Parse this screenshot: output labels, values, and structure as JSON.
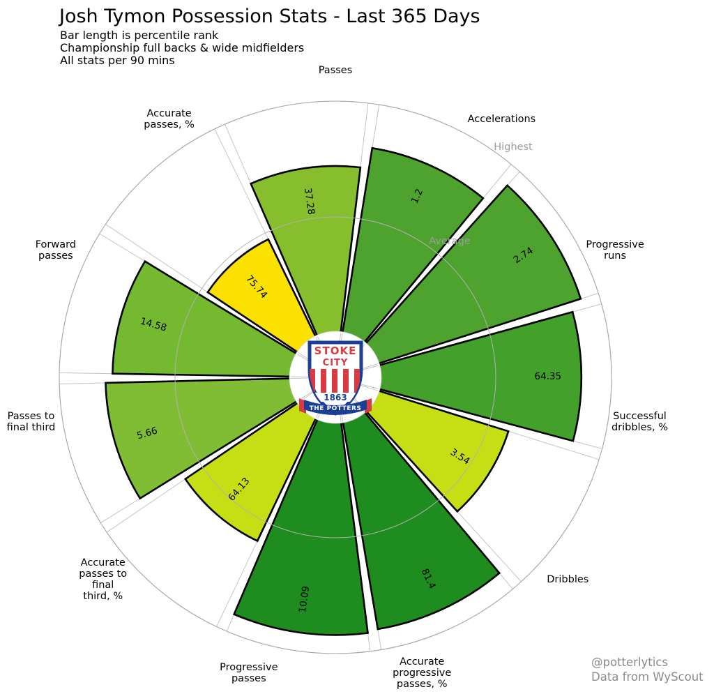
{
  "header": {
    "title": "Josh Tymon Possession Stats - Last 365 Days",
    "subtitle_lines": [
      "Bar length is percentile rank",
      "Championship full backs & wide midfielders",
      "All stats per 90 mins"
    ]
  },
  "credits": {
    "line1": "@potterlytics",
    "line2": "Data from WyScout"
  },
  "center_logo": {
    "club": "Stoke City",
    "text_top": "STOKE",
    "text_city": "CITY",
    "year": "1863",
    "banner": "THE POTTERS"
  },
  "chart_data": {
    "type": "bar",
    "variant": "circular-pizza",
    "title": "Josh Tymon Possession Stats - Last 365 Days",
    "note": "Bar length is percentile rank; value labels are raw per-90 stats",
    "rings": {
      "highest_label": "Highest",
      "average_label": "Average",
      "highest_percentile": 100,
      "average_percentile": 50
    },
    "ring_label_color": "#9c9c9c",
    "categories": [
      "Passes",
      "Accelerations",
      "Progressive runs",
      "Successful dribbles, %",
      "Dribbles",
      "Accurate progressive passes, %",
      "Progressive passes",
      "Accurate passes to final third, %",
      "Passes to final third",
      "Forward passes",
      "Accurate passes, %"
    ],
    "slices": [
      {
        "label": "Passes",
        "label_lines": [
          "Passes"
        ],
        "value": "37.28",
        "percentile": 72,
        "color": "#86BE2E"
      },
      {
        "label": "Accelerations",
        "label_lines": [
          "Accelerations"
        ],
        "value": "1.2",
        "percentile": 81,
        "color": "#4DA32E"
      },
      {
        "label": "Progressive runs",
        "label_lines": [
          "Progressive",
          "runs"
        ],
        "value": "2.74",
        "percentile": 92,
        "color": "#4DA32E"
      },
      {
        "label": "Successful dribbles, %",
        "label_lines": [
          "Successful",
          "dribbles, %"
        ],
        "value": "64.35",
        "percentile": 87,
        "color": "#42A02B"
      },
      {
        "label": "Dribbles",
        "label_lines": [
          "Dribbles"
        ],
        "value": "3.54",
        "percentile": 59,
        "color": "#C6DE14"
      },
      {
        "label": "Accurate progressive passes, %",
        "label_lines": [
          "Accurate",
          "progressive",
          "passes, %"
        ],
        "value": "81.4",
        "percentile": 91,
        "color": "#1F8C1F"
      },
      {
        "label": "Progressive passes",
        "label_lines": [
          "Progressive",
          "passes"
        ],
        "value": "10.09",
        "percentile": 92,
        "color": "#1F8C1F"
      },
      {
        "label": "Accurate passes to final third, %",
        "label_lines": [
          "Accurate",
          "passes to",
          "final",
          "third, %"
        ],
        "value": "64.13",
        "percentile": 59,
        "color": "#C6DE14"
      },
      {
        "label": "Passes to final third",
        "label_lines": [
          "Passes to",
          "final third"
        ],
        "value": "5.66",
        "percentile": 80,
        "color": "#80BD35"
      },
      {
        "label": "Forward passes",
        "label_lines": [
          "Forward",
          "passes"
        ],
        "value": "14.58",
        "percentile": 77,
        "color": "#74B92F"
      },
      {
        "label": "Accurate passes, %",
        "label_lines": [
          "Accurate",
          "passes, %"
        ],
        "value": "75.74",
        "percentile": 47,
        "color": "#FAE100"
      }
    ]
  }
}
